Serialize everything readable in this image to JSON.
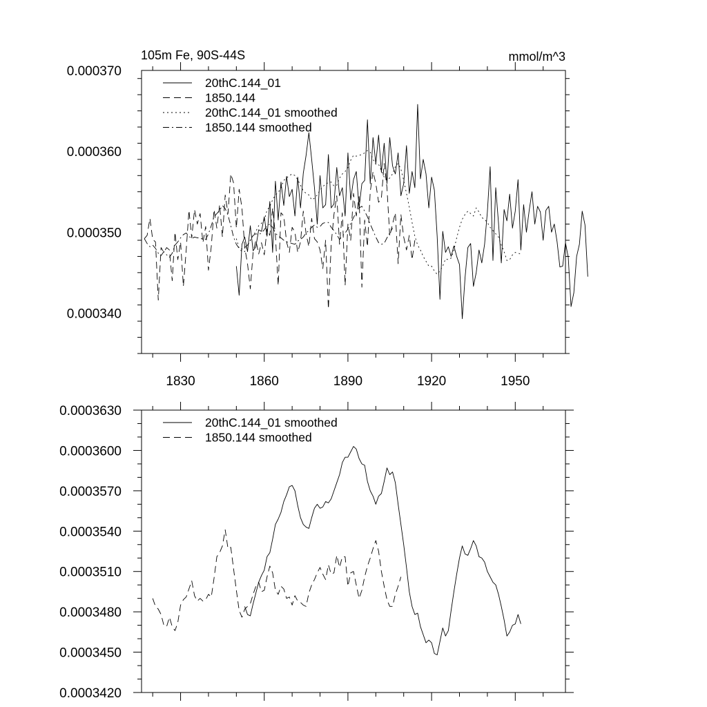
{
  "chart_data": [
    {
      "type": "line",
      "title_left": "105m Fe, 90S-44S",
      "title_right": "mmol/m^3",
      "xlabel": "",
      "ylabel": "",
      "xlim": [
        1816,
        1968
      ],
      "ylim": [
        0.000335,
        0.00037
      ],
      "x_ticks": [
        1830,
        1860,
        1890,
        1920,
        1950
      ],
      "y_ticks": [
        0.00034,
        0.00035,
        0.00036,
        0.00037
      ],
      "y_tick_labels": [
        "0.000340",
        "0.000350",
        "0.000360",
        "0.000370"
      ],
      "x_tick_labels": [
        "1830",
        "1860",
        "1890",
        "1920",
        "1950"
      ],
      "legend_position": "top-left",
      "series": [
        {
          "name": "20thC.144_01",
          "style": "solid",
          "x_start": 1850,
          "values": [
            0.0003458,
            0.0003422,
            0.0003485,
            0.0003494,
            0.0003476,
            0.0003508,
            0.0003477,
            0.0003482,
            0.0003503,
            0.0003501,
            0.0003519,
            0.0003495,
            0.0003538,
            0.0003475,
            0.0003563,
            0.0003515,
            0.0003562,
            0.0003533,
            0.0003569,
            0.0003544,
            0.0003553,
            0.000352,
            0.0003568,
            0.000353,
            0.0003573,
            0.0003595,
            0.0003623,
            0.000359,
            0.0003555,
            0.000351,
            0.000357,
            0.000353,
            0.0003534,
            0.0003596,
            0.000353,
            0.0003535,
            0.000358,
            0.0003545,
            0.0003555,
            0.000352,
            0.0003598,
            0.000354,
            0.0003565,
            0.0003575,
            0.000353,
            0.000356,
            0.0003564,
            0.0003639,
            0.000356,
            0.0003617,
            0.0003585,
            0.000362,
            0.0003574,
            0.000361,
            0.000356,
            0.0003617,
            0.0003582,
            0.0003572,
            0.0003598,
            0.0003545,
            0.000356,
            0.0003607,
            0.0003548,
            0.0003575,
            0.0003555,
            0.0003658,
            0.0003566,
            0.000359,
            0.0003572,
            0.000353,
            0.0003568,
            0.0003552,
            0.0003495,
            0.0003417,
            0.0003501,
            0.0003475,
            0.0003482,
            0.000347,
            0.0003483,
            0.000347,
            0.000346,
            0.0003393,
            0.0003444,
            0.0003481,
            0.0003486,
            0.0003433,
            0.000345,
            0.0003478,
            0.0003462,
            0.0003485,
            0.0003525,
            0.0003581,
            0.0003465,
            0.0003555,
            0.0003511,
            0.0003462,
            0.0003528,
            0.0003514,
            0.0003547,
            0.0003505,
            0.0003526,
            0.0003565,
            0.0003478,
            0.0003534,
            0.00035,
            0.0003527,
            0.000355,
            0.000351,
            0.0003532,
            0.0003525,
            0.000349,
            0.0003527,
            0.0003532,
            0.00035,
            0.000351,
            0.0003488,
            0.0003457,
            0.0003458,
            0.0003487,
            0.0003469,
            0.0003408,
            0.0003425,
            0.000347,
            0.0003485,
            0.0003526,
            0.0003509,
            0.0003445
          ]
        },
        {
          "name": "1850.144",
          "style": "dashed",
          "x_start": 1817,
          "values": [
            0.0003492,
            0.0003496,
            0.0003517,
            0.0003491,
            0.0003488,
            0.0003416,
            0.0003481,
            0.0003475,
            0.0003481,
            0.0003478,
            0.000344,
            0.00035,
            0.0003466,
            0.0003488,
            0.0003433,
            0.0003477,
            0.0003527,
            0.0003493,
            0.0003528,
            0.000351,
            0.0003523,
            0.0003487,
            0.0003507,
            0.0003453,
            0.0003482,
            0.0003528,
            0.0003505,
            0.0003534,
            0.0003494,
            0.0003546,
            0.0003523,
            0.0003572,
            0.0003561,
            0.0003505,
            0.0003553,
            0.000353,
            0.0003481,
            0.0003461,
            0.000343,
            0.0003475,
            0.000349,
            0.0003473,
            0.0003487,
            0.0003472,
            0.0003504,
            0.0003496,
            0.000353,
            0.0003496,
            0.0003434,
            0.0003524,
            0.000352,
            0.0003488,
            0.0003475,
            0.0003506,
            0.00035,
            0.0003475,
            0.0003488,
            0.0003526,
            0.0003498,
            0.0003482,
            0.0003517,
            0.0003492,
            0.0003488,
            0.0003478,
            0.0003455,
            0.000349,
            0.0003405,
            0.0003485,
            0.0003522,
            0.0003545,
            0.0003485,
            0.0003524,
            0.0003434,
            0.000351,
            0.000349,
            0.0003548,
            0.000352,
            0.0003544,
            0.0003432,
            0.0003515,
            0.0003482,
            0.000355,
            0.0003575,
            0.000356,
            0.0003537,
            0.0003542,
            0.0003585,
            0.0003555,
            0.0003495,
            0.000351,
            0.0003524,
            0.0003461,
            0.0003522,
            0.0003494,
            0.0003478,
            0.0003496,
            0.0003466,
            0.000349
          ]
        },
        {
          "name": "20thC.144_01 smoothed",
          "style": "dotted",
          "x_start": 1850,
          "values": [
            0.0003492,
            0.000348,
            0.0003476,
            0.0003476,
            0.0003483,
            0.000349,
            0.0003496,
            0.0003501,
            0.0003508,
            0.0003511,
            0.0003515,
            0.0003527,
            0.0003532,
            0.000354,
            0.0003546,
            0.0003549,
            0.0003555,
            0.0003564,
            0.0003567,
            0.000357,
            0.0003572,
            0.000357,
            0.0003565,
            0.0003558,
            0.0003551,
            0.0003548,
            0.0003546,
            0.000354,
            0.0003542,
            0.0003546,
            0.0003552,
            0.0003556,
            0.000356,
            0.0003561,
            0.0003562,
            0.0003557,
            0.0003558,
            0.0003567,
            0.0003572,
            0.0003575,
            0.000358,
            0.0003589,
            0.0003595,
            0.0003594,
            0.0003595,
            0.0003596,
            0.0003598,
            0.0003601,
            0.0003599,
            0.000359,
            0.0003584,
            0.0003584,
            0.0003576,
            0.0003568,
            0.0003564,
            0.0003567,
            0.0003572,
            0.0003581,
            0.0003585,
            0.0003578,
            0.0003564,
            0.0003548,
            0.0003531,
            0.0003512,
            0.0003495,
            0.0003484,
            0.0003478,
            0.000347,
            0.0003464,
            0.0003458,
            0.0003458,
            0.0003452,
            0.0003448,
            0.0003452,
            0.0003458,
            0.0003467,
            0.0003466,
            0.0003468,
            0.0003478,
            0.0003493,
            0.0003506,
            0.0003516,
            0.0003522,
            0.0003526,
            0.0003523,
            0.000352,
            0.000353,
            0.0003525,
            0.0003518,
            0.0003516,
            0.0003512,
            0.0003506,
            0.0003502,
            0.0003498,
            0.0003494,
            0.0003484,
            0.0003476,
            0.0003465,
            0.0003466,
            0.0003472,
            0.0003475,
            0.0003474,
            0.0003473
          ]
        },
        {
          "name": "1850.144 smoothed",
          "style": "dashdot",
          "x_start": 1817,
          "values": [
            0.0003492,
            0.0003486,
            0.0003482,
            0.0003484,
            0.000348,
            0.0003474,
            0.0003471,
            0.0003476,
            0.0003472,
            0.0003469,
            0.0003474,
            0.0003484,
            0.0003488,
            0.0003493,
            0.0003497,
            0.0003499,
            0.0003495,
            0.0003492,
            0.0003494,
            0.0003493,
            0.0003493,
            0.0003491,
            0.0003491,
            0.0003498,
            0.0003508,
            0.0003519,
            0.0003523,
            0.0003527,
            0.0003533,
            0.0003529,
            0.0003521,
            0.0003508,
            0.0003494,
            0.0003485,
            0.000348,
            0.0003479,
            0.0003481,
            0.0003484,
            0.000349,
            0.0003496,
            0.0003498,
            0.0003497,
            0.0003499,
            0.0003503,
            0.0003508,
            0.000351,
            0.0003506,
            0.0003499,
            0.0003495,
            0.0003493,
            0.000349,
            0.0003488,
            0.0003487,
            0.0003486,
            0.0003485,
            0.0003489,
            0.0003491,
            0.0003494,
            0.0003499,
            0.0003502,
            0.0003506,
            0.0003509,
            0.0003506,
            0.0003507,
            0.0003511,
            0.0003512,
            0.0003512,
            0.0003506,
            0.0003502,
            0.0003497,
            0.0003491,
            0.0003495,
            0.0003499,
            0.0003504,
            0.0003511,
            0.0003518,
            0.0003525,
            0.000353,
            0.0003532,
            0.0003526,
            0.0003519,
            0.000351,
            0.0003502,
            0.0003494,
            0.0003487,
            0.0003485,
            0.0003486,
            0.0003493,
            0.0003499,
            0.0003505
          ]
        }
      ]
    },
    {
      "type": "line",
      "xlabel": "",
      "ylabel": "",
      "xlim": [
        1816,
        1968
      ],
      "ylim": [
        0.000342,
        0.000363
      ],
      "x_ticks": [
        1830,
        1860,
        1890,
        1920,
        1950
      ],
      "y_ticks": [
        0.000342,
        0.000345,
        0.000348,
        0.000351,
        0.000354,
        0.000357,
        0.00036,
        0.000363
      ],
      "y_tick_labels": [
        "0.0003420",
        "0.0003450",
        "0.0003480",
        "0.0003510",
        "0.0003540",
        "0.0003570",
        "0.0003600",
        "0.0003630"
      ],
      "legend_position": "top-left",
      "series": [
        {
          "name": "20thC.144_01 smoothed",
          "style": "solid",
          "x_start": 1853,
          "values": [
            0.0003484,
            0.0003478,
            0.0003477,
            0.0003486,
            0.0003494,
            0.0003502,
            0.0003507,
            0.0003511,
            0.0003521,
            0.0003524,
            0.0003534,
            0.0003545,
            0.0003549,
            0.0003554,
            0.0003562,
            0.0003567,
            0.0003573,
            0.0003574,
            0.000357,
            0.0003559,
            0.000355,
            0.0003545,
            0.0003543,
            0.0003542,
            0.000355,
            0.0003557,
            0.000356,
            0.0003557,
            0.0003558,
            0.0003562,
            0.0003561,
            0.0003564,
            0.000357,
            0.0003576,
            0.0003582,
            0.0003591,
            0.0003595,
            0.0003595,
            0.0003599,
            0.0003603,
            0.0003601,
            0.0003594,
            0.000359,
            0.0003589,
            0.0003577,
            0.000357,
            0.0003566,
            0.000356,
            0.0003566,
            0.0003568,
            0.0003577,
            0.0003587,
            0.0003582,
            0.0003584,
            0.0003576,
            0.000356,
            0.0003545,
            0.000353,
            0.0003513,
            0.0003495,
            0.0003484,
            0.0003478,
            0.0003479,
            0.0003469,
            0.0003463,
            0.0003457,
            0.0003459,
            0.0003457,
            0.0003449,
            0.0003448,
            0.0003458,
            0.0003468,
            0.0003462,
            0.0003466,
            0.0003481,
            0.0003495,
            0.0003508,
            0.000352,
            0.0003529,
            0.0003523,
            0.0003522,
            0.0003527,
            0.0003533,
            0.0003529,
            0.0003521,
            0.000352,
            0.0003517,
            0.000351,
            0.0003506,
            0.0003502,
            0.00035,
            0.0003493,
            0.0003484,
            0.0003474,
            0.0003462,
            0.0003465,
            0.000347,
            0.0003471,
            0.0003478,
            0.0003471
          ]
        },
        {
          "name": "1850.144 smoothed",
          "style": "dashed",
          "x_start": 1820,
          "values": [
            0.000349,
            0.0003484,
            0.0003482,
            0.0003478,
            0.000347,
            0.0003469,
            0.0003476,
            0.0003469,
            0.0003466,
            0.0003472,
            0.0003485,
            0.0003489,
            0.0003491,
            0.0003497,
            0.0003503,
            0.0003492,
            0.0003488,
            0.000349,
            0.0003488,
            0.0003489,
            0.0003493,
            0.0003491,
            0.0003505,
            0.0003521,
            0.0003524,
            0.0003529,
            0.0003541,
            0.0003527,
            0.0003528,
            0.0003512,
            0.0003496,
            0.0003481,
            0.0003476,
            0.0003482,
            0.0003484,
            0.0003486,
            0.0003493,
            0.0003499,
            0.0003502,
            0.0003495,
            0.0003496,
            0.0003506,
            0.0003514,
            0.0003509,
            0.0003496,
            0.0003493,
            0.0003499,
            0.0003497,
            0.000349,
            0.0003491,
            0.0003485,
            0.0003492,
            0.0003488,
            0.0003487,
            0.0003485,
            0.0003484,
            0.0003494,
            0.00035,
            0.0003504,
            0.0003509,
            0.0003513,
            0.0003508,
            0.0003504,
            0.0003515,
            0.0003508,
            0.0003509,
            0.0003522,
            0.0003513,
            0.0003521,
            0.0003521,
            0.0003499,
            0.0003509,
            0.000351,
            0.00035,
            0.000349,
            0.0003496,
            0.0003506,
            0.0003514,
            0.000352,
            0.0003527,
            0.0003533,
            0.0003525,
            0.000351,
            0.0003499,
            0.0003489,
            0.0003484,
            0.0003484,
            0.0003493,
            0.0003499,
            0.0003506
          ]
        }
      ]
    }
  ]
}
